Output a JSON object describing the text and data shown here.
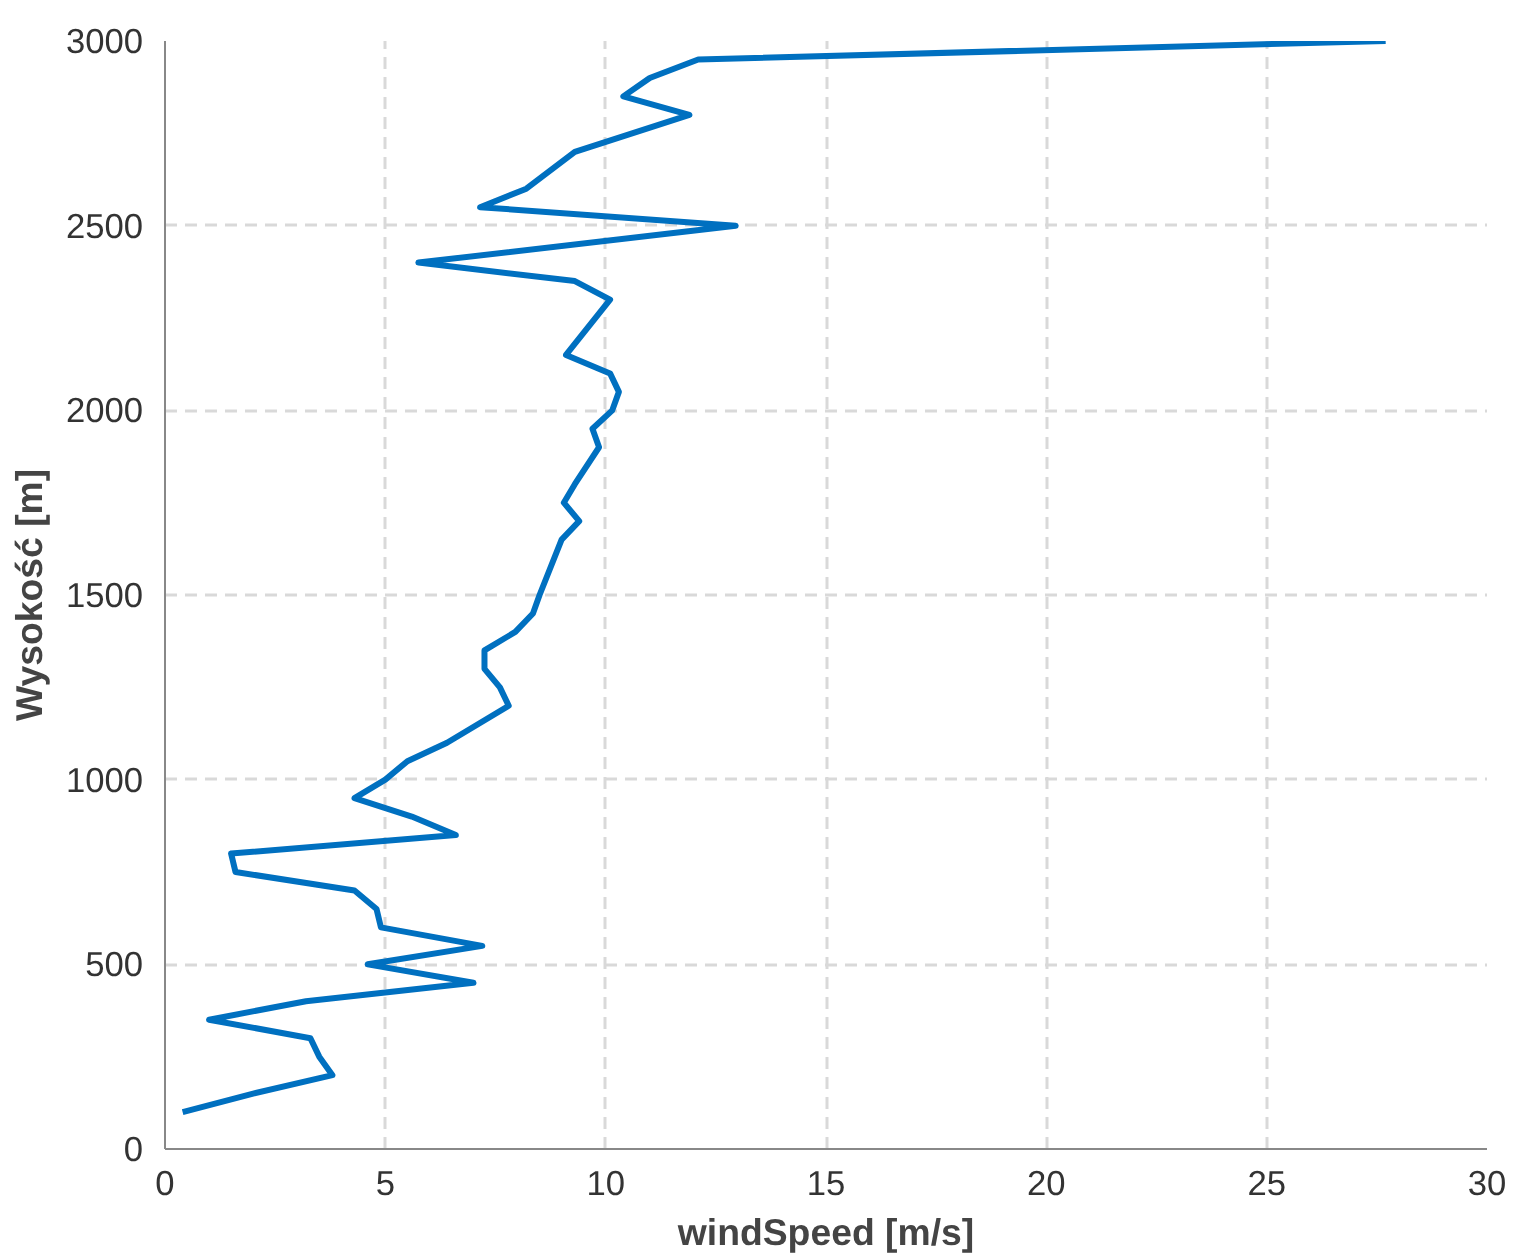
{
  "chart_data": {
    "type": "line",
    "xlabel": "windSpeed [m/s]",
    "ylabel": "Wysokość [m]",
    "x": [
      0.4,
      2.0,
      3.8,
      3.5,
      3.3,
      1.0,
      3.2,
      7.0,
      4.6,
      7.2,
      4.9,
      4.8,
      4.3,
      1.6,
      1.5,
      6.6,
      5.6,
      4.3,
      5.0,
      5.5,
      6.4,
      7.8,
      7.6,
      7.25,
      7.25,
      7.95,
      8.35,
      8.5,
      9.0,
      9.4,
      9.05,
      9.3,
      9.85,
      9.7,
      10.15,
      10.3,
      10.1,
      9.1,
      10.1,
      9.3,
      5.75,
      12.95,
      7.15,
      8.2,
      9.3,
      11.9,
      10.4,
      11.0,
      12.1,
      27.7
    ],
    "series": [
      {
        "color": "#0070c0",
        "values": [
          100,
          150,
          200,
          250,
          300,
          350,
          400,
          450,
          500,
          550,
          600,
          650,
          700,
          750,
          800,
          850,
          900,
          950,
          1000,
          1050,
          1100,
          1200,
          1250,
          1300,
          1350,
          1400,
          1450,
          1500,
          1650,
          1700,
          1750,
          1800,
          1900,
          1950,
          2000,
          2050,
          2100,
          2150,
          2300,
          2350,
          2400,
          2500,
          2550,
          2600,
          2700,
          2800,
          2850,
          2900,
          2950,
          3000
        ]
      }
    ],
    "xlim": [
      0,
      30
    ],
    "xticks": [
      0,
      5,
      10,
      15,
      20,
      25,
      30
    ],
    "ylim": [
      0,
      3000
    ],
    "yticks": [
      0,
      500,
      1000,
      1500,
      2000,
      2500,
      3000
    ],
    "grid": true,
    "marker": "none",
    "line_style": "solid"
  }
}
